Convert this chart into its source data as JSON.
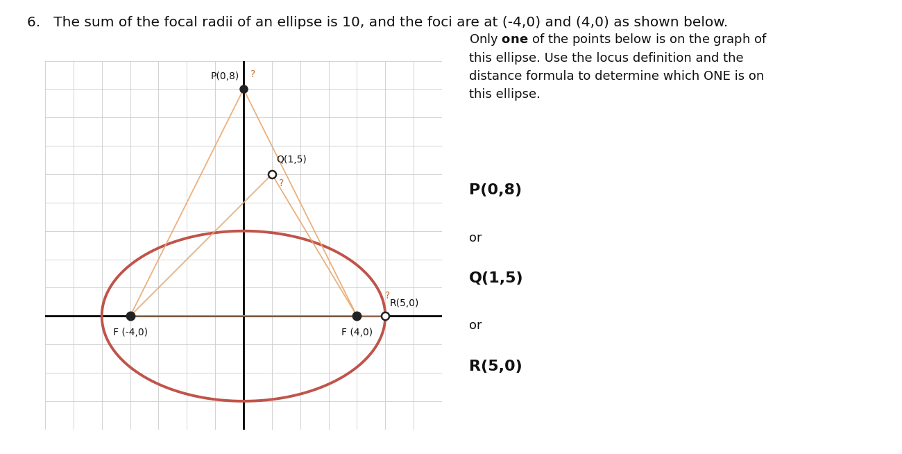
{
  "title": "6.   The sum of the focal radii of an ellipse is 10, and the foci are at (-4,0) and (4,0) as shown below.",
  "title_fontsize": 14.5,
  "ellipse_a": 5,
  "ellipse_b": 3,
  "ellipse_color": "#c0544a",
  "ellipse_linewidth": 2.8,
  "foci": [
    [
      -4,
      0
    ],
    [
      4,
      0
    ]
  ],
  "focus_color": "#222222",
  "line_color": "#e8a870",
  "line_alpha": 0.9,
  "line_linewidth": 1.3,
  "question_mark_color": "#c07030",
  "grid_color": "#cccccc",
  "grid_linewidth": 0.6,
  "axis_color": "#000000",
  "axis_linewidth": 2.0,
  "xlim": [
    -7,
    7
  ],
  "ylim": [
    -4,
    9
  ],
  "bg_color": "#ffffff",
  "desc_text_fontsize": 13,
  "answer_fontsize_bold": 16,
  "answer_fontsize_or": 13
}
